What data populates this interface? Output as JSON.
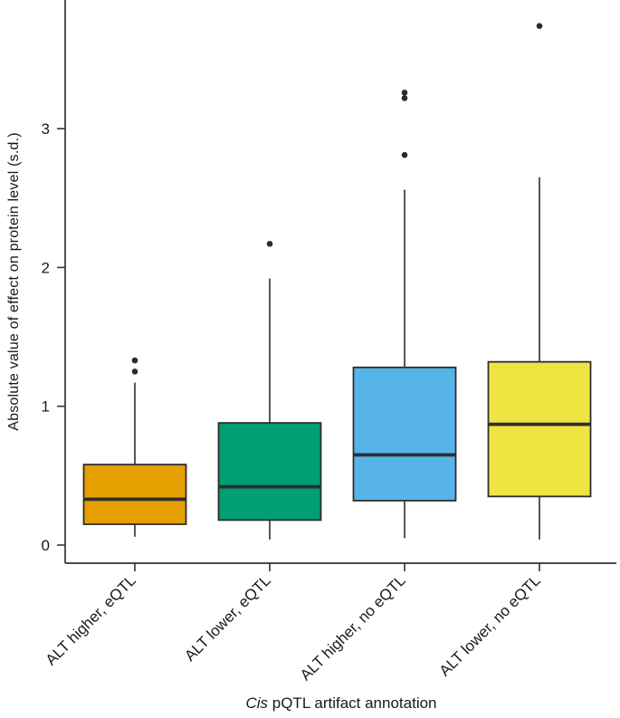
{
  "chart_data": {
    "type": "boxplot",
    "title": "",
    "xlabel": "Cis pQTL artifact annotation",
    "xlabel_italic": "Cis",
    "xlabel_rest": " pQTL artifact annotation",
    "ylabel": "Absolute value of effect on protein level (s.d.)",
    "categories": [
      "ALT higher, eQTL",
      "ALT lower, eQTL",
      "ALT higher, no eQTL",
      "ALT lower, no eQTL"
    ],
    "series": [
      {
        "name": "ALT higher, eQTL",
        "color": "#E69F00",
        "whisker_low": 0.06,
        "q1": 0.15,
        "median": 0.33,
        "q3": 0.58,
        "whisker_high": 1.17,
        "outliers": [
          1.25,
          1.33
        ]
      },
      {
        "name": "ALT lower, eQTL",
        "color": "#009E73",
        "whisker_low": 0.04,
        "q1": 0.18,
        "median": 0.42,
        "q3": 0.88,
        "whisker_high": 1.92,
        "outliers": [
          2.17
        ]
      },
      {
        "name": "ALT higher, no eQTL",
        "color": "#56B4E9",
        "whisker_low": 0.05,
        "q1": 0.32,
        "median": 0.65,
        "q3": 1.28,
        "whisker_high": 2.56,
        "outliers": [
          2.81,
          3.22,
          3.26
        ]
      },
      {
        "name": "ALT lower, no eQTL",
        "color": "#F0E442",
        "whisker_low": 0.04,
        "q1": 0.35,
        "median": 0.87,
        "q3": 1.32,
        "whisker_high": 2.65,
        "outliers": [
          3.74
        ]
      }
    ],
    "yticks": [
      0,
      1,
      2,
      3
    ],
    "ylim": [
      -0.13,
      3.93
    ],
    "grid": false,
    "legend_position": "none",
    "axis_color": "#333333",
    "box_border_color": "#2e2e2e",
    "outlier_color": "#2b2b2b",
    "text_color": "#1a1a1a"
  }
}
